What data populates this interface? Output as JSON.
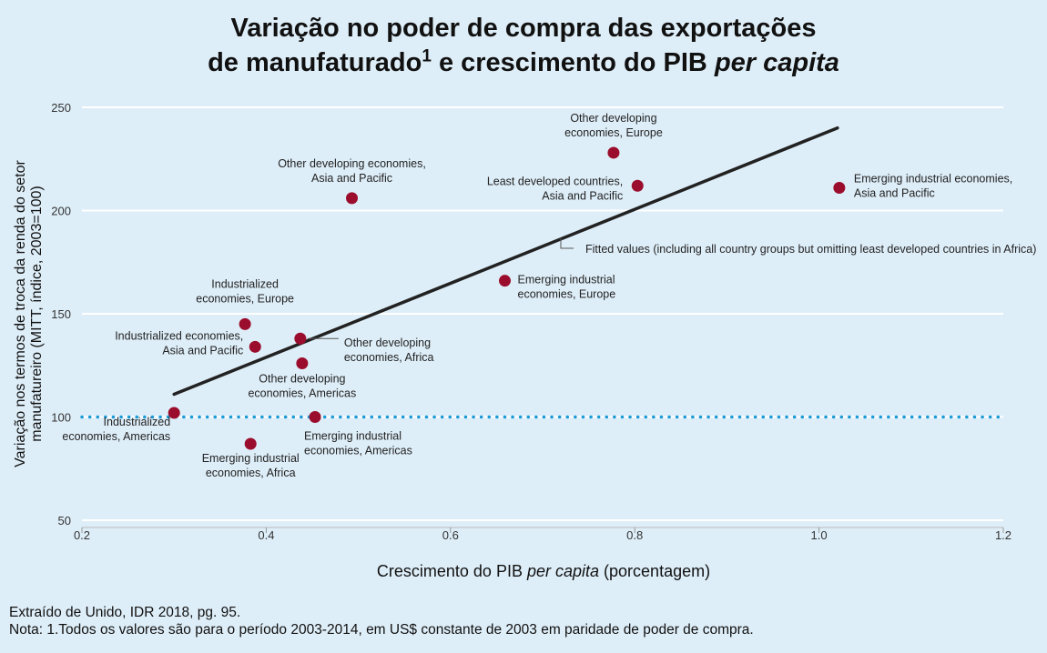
{
  "title": {
    "line1": "Variação no poder de compra das exportações",
    "line2_a": "de manufaturado",
    "line2_sup": "1",
    "line2_b": " e crescimento do PIB ",
    "line2_c": "per capita"
  },
  "axes": {
    "xlabel_a": "Crescimento do PIB ",
    "xlabel_b": "per capita",
    "xlabel_c": " (porcentagem)",
    "ylabel": "Variação nos termos de troca da renda do setor manufatureiro (MITT, índice, 2003=100)"
  },
  "footer": {
    "source": "Extraído de Unido, IDR 2018, pg. 95.",
    "note": "Nota: 1.Todos os valores são para o período 2003-2014, em US$ constante de 2003 em paridade de poder de compra."
  },
  "colors": {
    "background": "#deeef8",
    "point": "#9b0d2c",
    "fit_line": "#222222",
    "reference_line": "#1a9ad6",
    "grid": "#ffffff"
  },
  "chart_data": {
    "type": "scatter",
    "xlim": [
      0.2,
      1.2
    ],
    "ylim": [
      50,
      250
    ],
    "xticks": [
      0.2,
      0.4,
      0.6,
      0.8,
      1.0,
      1.2
    ],
    "xtick_labels": [
      "0.2",
      "0.4",
      "0.6",
      "0.8",
      "1.0",
      "1.2"
    ],
    "yticks": [
      50,
      100,
      150,
      200,
      250
    ],
    "ytick_labels": [
      "50",
      "100",
      "150",
      "200",
      "250"
    ],
    "grid": "horizontal",
    "reference_line_y": 100,
    "fit_line": {
      "label": "Fitted values (including all country groups but omitting least developed countries in Africa)",
      "x": [
        0.3,
        1.02
      ],
      "y": [
        111,
        240
      ]
    },
    "points": [
      {
        "label": [
          "Industrialized",
          "economies, Americas"
        ],
        "x": 0.3,
        "y": 102
      },
      {
        "label": [
          "Industrialized",
          "economies, Europe"
        ],
        "x": 0.377,
        "y": 145
      },
      {
        "label": [
          "Industrialized economies,",
          "Asia and Pacific"
        ],
        "x": 0.388,
        "y": 134
      },
      {
        "label": [
          "Emerging industrial",
          "economies, Africa"
        ],
        "x": 0.383,
        "y": 87
      },
      {
        "label": [
          "Other developing",
          "economies, Africa"
        ],
        "x": 0.437,
        "y": 138
      },
      {
        "label": [
          "Other developing",
          "economies, Americas"
        ],
        "x": 0.439,
        "y": 126
      },
      {
        "label": [
          "Emerging industrial",
          "economies, Americas"
        ],
        "x": 0.453,
        "y": 100
      },
      {
        "label": [
          "Other developing economies,",
          "Asia and Pacific"
        ],
        "x": 0.493,
        "y": 206
      },
      {
        "label": [
          "Emerging industrial",
          "economies, Europe"
        ],
        "x": 0.659,
        "y": 166
      },
      {
        "label": [
          "Other developing",
          "economies, Europe"
        ],
        "x": 0.777,
        "y": 228
      },
      {
        "label": [
          "Least developed countries,",
          "Asia and Pacific"
        ],
        "x": 0.803,
        "y": 212
      },
      {
        "label": [
          "Emerging industrial economies,",
          "Asia and Pacific"
        ],
        "x": 1.022,
        "y": 211
      }
    ]
  }
}
